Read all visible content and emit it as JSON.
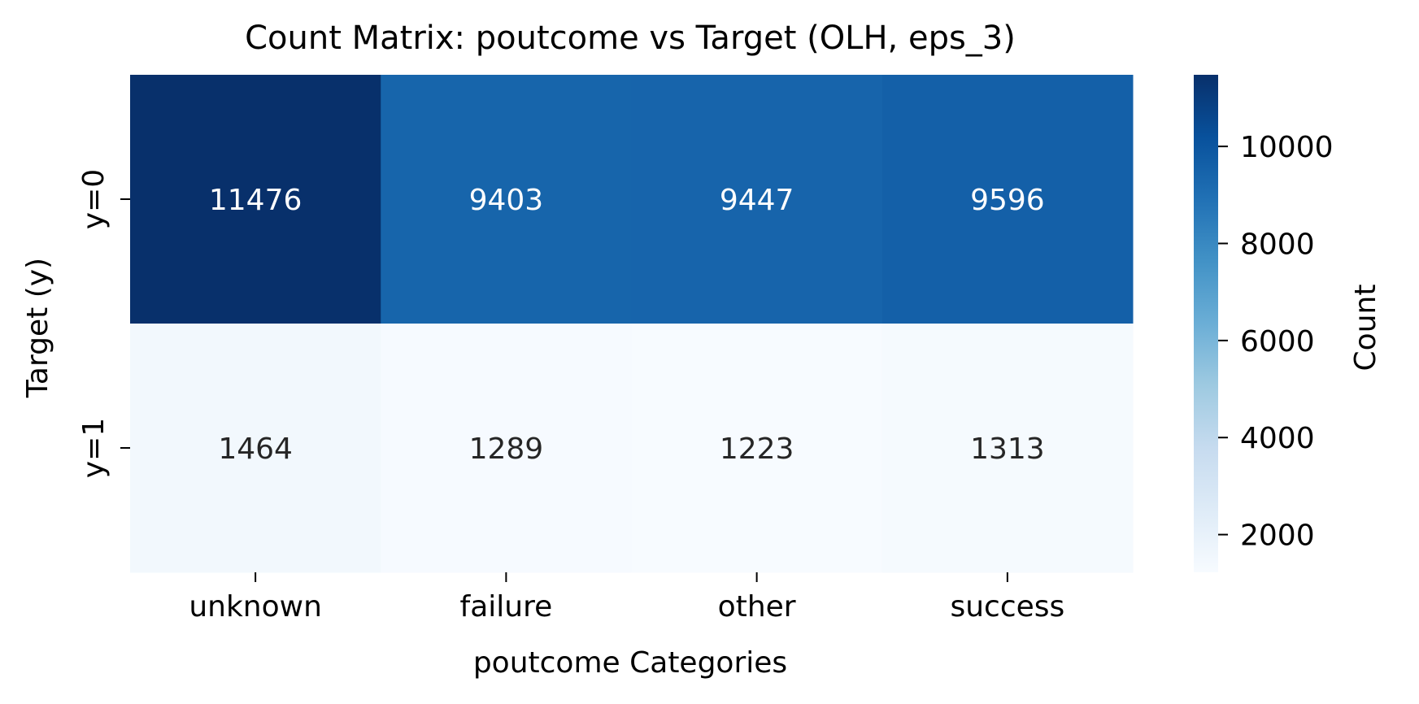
{
  "chart_data": {
    "type": "heatmap",
    "title": "Count Matrix: poutcome vs Target (OLH, eps_3)",
    "xlabel": "poutcome Categories",
    "ylabel": "Target (y)",
    "x_categories": [
      "unknown",
      "failure",
      "other",
      "success"
    ],
    "y_categories": [
      "y=0",
      "y=1"
    ],
    "values": [
      [
        11476,
        9403,
        9447,
        9596
      ],
      [
        1464,
        1289,
        1223,
        1313
      ]
    ],
    "colormap": "Blues",
    "color_range": [
      1223,
      11476
    ],
    "colorbar": {
      "label": "Count",
      "ticks": [
        2000,
        4000,
        6000,
        8000,
        10000
      ],
      "tick_labels": [
        "2000",
        "4000",
        "6000",
        "8000",
        "10000"
      ]
    },
    "annotation_colors": {
      "dark": "#262626",
      "light": "#ffffff"
    }
  }
}
